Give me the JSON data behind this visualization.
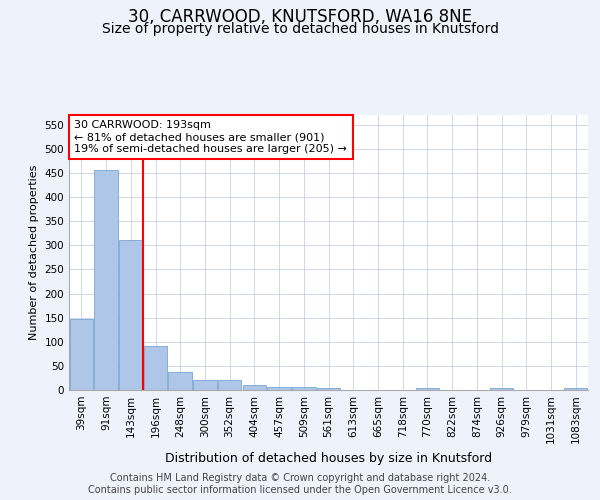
{
  "title1": "30, CARRWOOD, KNUTSFORD, WA16 8NE",
  "title2": "Size of property relative to detached houses in Knutsford",
  "xlabel": "Distribution of detached houses by size in Knutsford",
  "ylabel": "Number of detached properties",
  "categories": [
    "39sqm",
    "91sqm",
    "143sqm",
    "196sqm",
    "248sqm",
    "300sqm",
    "352sqm",
    "404sqm",
    "457sqm",
    "509sqm",
    "561sqm",
    "613sqm",
    "665sqm",
    "718sqm",
    "770sqm",
    "822sqm",
    "874sqm",
    "926sqm",
    "979sqm",
    "1031sqm",
    "1083sqm"
  ],
  "values": [
    148,
    455,
    310,
    92,
    37,
    20,
    20,
    10,
    6,
    6,
    4,
    0,
    0,
    0,
    4,
    0,
    0,
    4,
    0,
    0,
    4
  ],
  "bar_color": "#aec6e8",
  "bar_edge_color": "#6699cc",
  "annotation_text": "30 CARRWOOD: 193sqm\n← 81% of detached houses are smaller (901)\n19% of semi-detached houses are larger (205) →",
  "annotation_box_color": "white",
  "annotation_box_edge_color": "red",
  "vline_x_index": 3,
  "vline_color": "red",
  "ylim": [
    0,
    570
  ],
  "yticks": [
    0,
    50,
    100,
    150,
    200,
    250,
    300,
    350,
    400,
    450,
    500,
    550
  ],
  "footer_text": "Contains HM Land Registry data © Crown copyright and database right 2024.\nContains public sector information licensed under the Open Government Licence v3.0.",
  "background_color": "#eef2fb",
  "plot_background": "white",
  "grid_color": "#c8cfe8",
  "title1_fontsize": 12,
  "title2_fontsize": 10,
  "xlabel_fontsize": 9,
  "ylabel_fontsize": 8,
  "tick_fontsize": 7.5,
  "annotation_fontsize": 8,
  "footer_fontsize": 7
}
